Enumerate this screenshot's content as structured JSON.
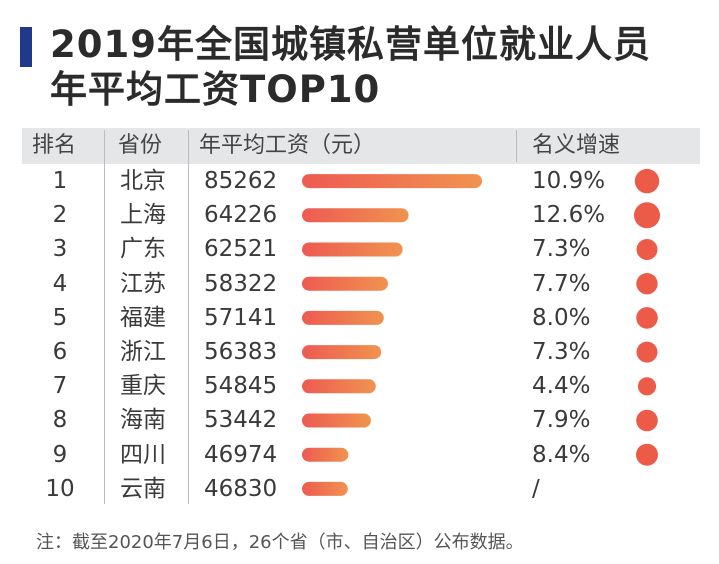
{
  "title": "2019年全国城镇私营单位就业人员年平均工资TOP10",
  "title_lines": [
    "2019年全国城镇私营单位就业人员",
    "年平均工资TOP10"
  ],
  "headers": {
    "rank": "排名",
    "province": "省份",
    "wage": "年平均工资（元）",
    "growth": "名义增速"
  },
  "footnote": "注：截至2020年7月6日，26个省（市、自治区）公布数据。",
  "colors": {
    "title_bar": "#1f3a8a",
    "bar_start": "#ee5a52",
    "bar_end": "#f0934f",
    "dot": "#ec5a48",
    "header_bg": "#e5e6e8"
  },
  "chart_data": {
    "type": "table",
    "title": "2019年全国城镇私营单位就业人员年平均工资TOP10",
    "columns": [
      "排名",
      "省份",
      "年平均工资（元）",
      "名义增速"
    ],
    "rows": [
      {
        "rank": "1",
        "province": "北京",
        "wage": 85262,
        "growth": "10.9%",
        "growth_value": 10.9
      },
      {
        "rank": "2",
        "province": "上海",
        "wage": 64226,
        "growth": "12.6%",
        "growth_value": 12.6
      },
      {
        "rank": "3",
        "province": "广东",
        "wage": 62521,
        "growth": "7.3%",
        "growth_value": 7.3
      },
      {
        "rank": "4",
        "province": "江苏",
        "wage": 58322,
        "growth": "7.7%",
        "growth_value": 7.7
      },
      {
        "rank": "5",
        "province": "福建",
        "wage": 57141,
        "growth": "8.0%",
        "growth_value": 8.0
      },
      {
        "rank": "6",
        "province": "浙江",
        "wage": 56383,
        "growth": "7.3%",
        "growth_value": 7.3
      },
      {
        "rank": "7",
        "province": "重庆",
        "wage": 54845,
        "growth": "4.4%",
        "growth_value": 4.4
      },
      {
        "rank": "8",
        "province": "海南",
        "wage": 53442,
        "growth": "7.9%",
        "growth_value": 7.9
      },
      {
        "rank": "9",
        "province": "四川",
        "wage": 46974,
        "growth": "8.4%",
        "growth_value": 8.4
      },
      {
        "rank": "10",
        "province": "云南",
        "wage": 46830,
        "growth": "/",
        "growth_value": null
      }
    ]
  }
}
